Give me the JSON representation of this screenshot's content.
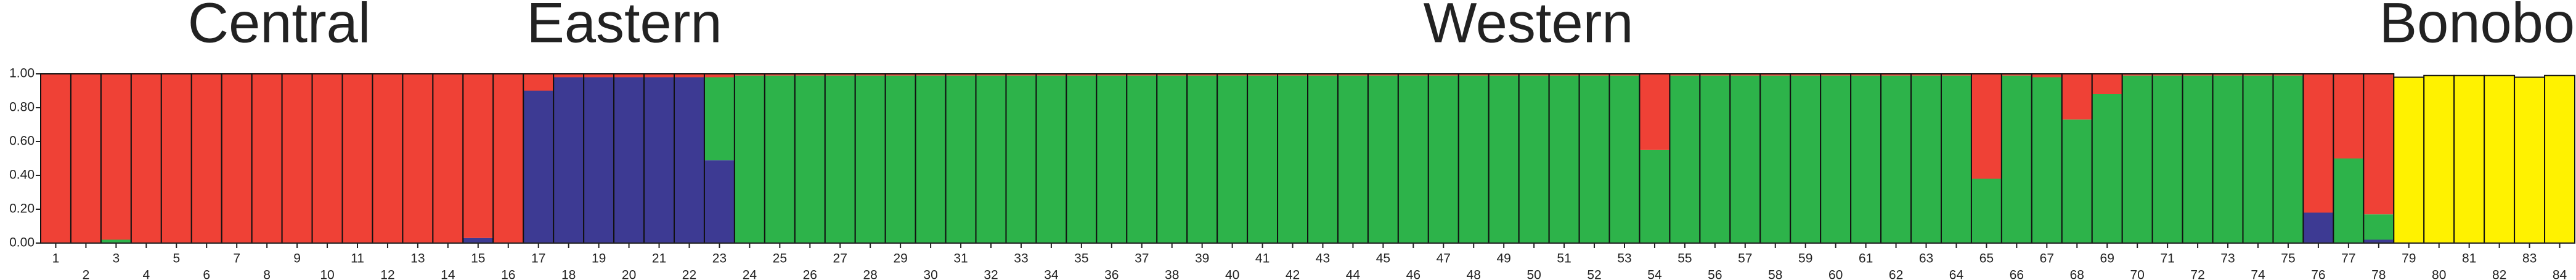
{
  "chart_data": {
    "type": "stacked-bar",
    "annotations": [
      "Central",
      "Eastern",
      "Western",
      "Bonobo"
    ],
    "categories": [
      1,
      2,
      3,
      4,
      5,
      6,
      7,
      8,
      9,
      10,
      11,
      12,
      13,
      14,
      15,
      16,
      17,
      18,
      19,
      20,
      21,
      22,
      23,
      24,
      25,
      26,
      27,
      28,
      29,
      30,
      31,
      32,
      33,
      34,
      35,
      36,
      37,
      38,
      39,
      40,
      41,
      42,
      43,
      44,
      45,
      46,
      47,
      48,
      49,
      50,
      51,
      52,
      53,
      54,
      55,
      56,
      57,
      58,
      59,
      60,
      61,
      62,
      63,
      64,
      65,
      66,
      67,
      68,
      69,
      70,
      71,
      72,
      73,
      74,
      75,
      76,
      77,
      78,
      79,
      80,
      81,
      82,
      83,
      84
    ],
    "series": [
      {
        "color": "#3d3a93",
        "values": [
          0,
          0,
          0,
          0,
          0,
          0,
          0,
          0,
          0,
          0,
          0,
          0,
          0,
          0,
          0.03,
          0,
          0.9,
          0.98,
          0.98,
          0.98,
          0.98,
          0.98,
          0.49,
          0,
          0,
          0,
          0,
          0,
          0,
          0,
          0,
          0,
          0,
          0,
          0,
          0,
          0,
          0,
          0,
          0,
          0,
          0,
          0,
          0,
          0,
          0,
          0,
          0,
          0,
          0,
          0,
          0,
          0,
          0,
          0,
          0,
          0,
          0,
          0,
          0,
          0,
          0,
          0,
          0,
          0,
          0,
          0,
          0,
          0,
          0,
          0,
          0,
          0,
          0,
          0,
          0.18,
          0,
          0.02,
          0,
          0,
          0,
          0,
          0,
          0
        ]
      },
      {
        "color": "#2db34a",
        "values": [
          0,
          0,
          0.02,
          0,
          0,
          0,
          0,
          0,
          0,
          0,
          0,
          0,
          0,
          0,
          0,
          0,
          0,
          0,
          0,
          0,
          0,
          0,
          0.49,
          0.99,
          0.99,
          0.99,
          0.99,
          0.99,
          0.99,
          0.99,
          0.99,
          0.99,
          0.99,
          0.99,
          0.99,
          0.99,
          0.99,
          0.99,
          0.99,
          0.99,
          0.99,
          0.99,
          0.99,
          0.99,
          0.99,
          0.99,
          0.99,
          0.99,
          0.99,
          0.99,
          0.99,
          0.99,
          0.99,
          0.55,
          0.99,
          0.99,
          0.99,
          0.99,
          0.99,
          0.99,
          0.99,
          0.99,
          0.99,
          0.99,
          0.38,
          0.99,
          0.98,
          0.73,
          0.88,
          0.99,
          0.99,
          0.99,
          0.99,
          0.99,
          0.99,
          0,
          0.5,
          0.15,
          0,
          0,
          0,
          0,
          0,
          0
        ]
      },
      {
        "color": "#ef4136",
        "values": [
          1,
          1,
          0.98,
          1,
          1,
          1,
          1,
          1,
          1,
          1,
          1,
          1,
          1,
          1,
          0.97,
          1,
          0.1,
          0.02,
          0.02,
          0.02,
          0.02,
          0.02,
          0.02,
          0.01,
          0.01,
          0.01,
          0.01,
          0.01,
          0.01,
          0.01,
          0.01,
          0.01,
          0.01,
          0.01,
          0.01,
          0.01,
          0.01,
          0.01,
          0.01,
          0.01,
          0.01,
          0.01,
          0.01,
          0.01,
          0.01,
          0.01,
          0.01,
          0.01,
          0.01,
          0.01,
          0.01,
          0.01,
          0.01,
          0.45,
          0.01,
          0.01,
          0.01,
          0.01,
          0.01,
          0.01,
          0.01,
          0.01,
          0.01,
          0.01,
          0.62,
          0.01,
          0.02,
          0.27,
          0.12,
          0.01,
          0.01,
          0.01,
          0.01,
          0.01,
          0.01,
          0.82,
          0.5,
          0.83,
          0,
          0,
          0,
          0,
          0,
          0
        ]
      },
      {
        "color": "#fff200",
        "values": [
          0,
          0,
          0,
          0,
          0,
          0,
          0,
          0,
          0,
          0,
          0,
          0,
          0,
          0,
          0,
          0,
          0,
          0,
          0,
          0,
          0,
          0,
          0,
          0,
          0,
          0,
          0,
          0,
          0,
          0,
          0,
          0,
          0,
          0,
          0,
          0,
          0,
          0,
          0,
          0,
          0,
          0,
          0,
          0,
          0,
          0,
          0,
          0,
          0,
          0,
          0,
          0,
          0,
          0,
          0,
          0,
          0,
          0,
          0,
          0,
          0,
          0,
          0,
          0,
          0,
          0,
          0,
          0,
          0,
          0,
          0,
          0,
          0,
          0,
          0,
          0,
          0,
          0,
          0.98,
          0.99,
          0.99,
          0.99,
          0.98,
          0.99
        ]
      }
    ],
    "ylim": [
      0,
      1
    ],
    "yticks": [
      {
        "value": 0,
        "label": "0.00"
      },
      {
        "value": 0.2,
        "label": "0.20"
      },
      {
        "value": 0.4,
        "label": "0.40"
      },
      {
        "value": 0.6,
        "label": "0.60"
      },
      {
        "value": 0.8,
        "label": "0.80"
      },
      {
        "value": 1,
        "label": "1.00"
      }
    ]
  }
}
